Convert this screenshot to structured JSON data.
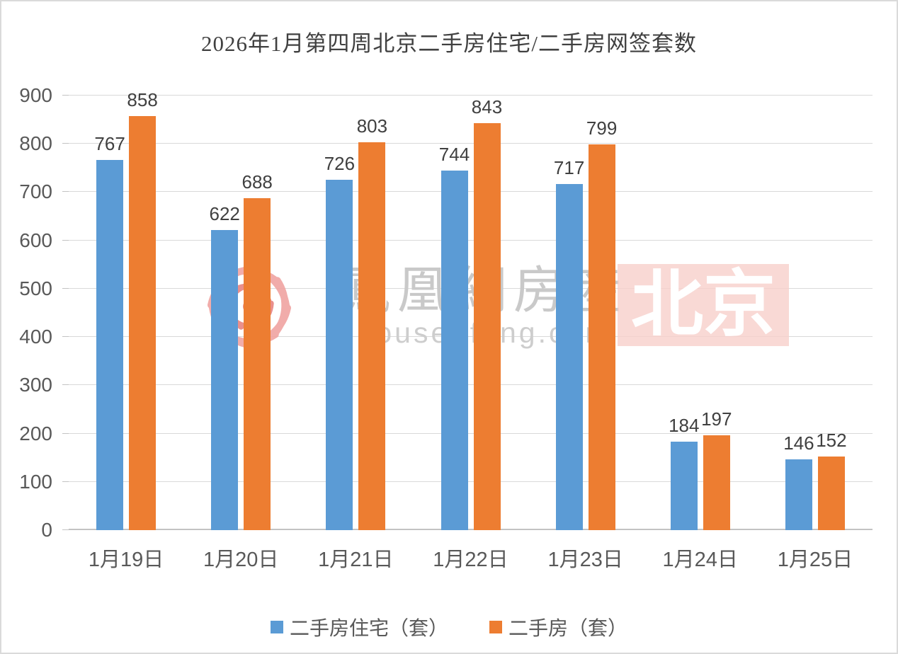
{
  "title": "2026年1月第四周北京二手房住宅/二手房网签套数",
  "watermark": {
    "brand_text": "鳳凰網房産",
    "site_url": "house.ifeng.com",
    "city_badge": "北京"
  },
  "colors": {
    "series1": "#5B9BD5",
    "series2": "#ED7D31",
    "gridline": "#D9D9D9",
    "axis_line": "#C3C3C3",
    "axis_text": "#595959",
    "value_label": "#404040",
    "title_text": "#404040",
    "watermark_text": "#C9C9C9",
    "badge_bg": "#F8CFCB",
    "badge_text": "#FFFFFF",
    "logo_pink": "#F0A4A1",
    "logo_red": "#EA8F8B"
  },
  "chart_data": {
    "type": "bar",
    "title": "2026年1月第四周北京二手房住宅/二手房网签套数",
    "categories": [
      "1月19日",
      "1月20日",
      "1月21日",
      "1月22日",
      "1月23日",
      "1月24日",
      "1月25日"
    ],
    "series": [
      {
        "name": "二手房住宅（套）",
        "color": "#5B9BD5",
        "values": [
          767,
          622,
          726,
          744,
          717,
          184,
          146
        ]
      },
      {
        "name": "二手房（套）",
        "color": "#ED7D31",
        "values": [
          858,
          688,
          803,
          843,
          799,
          197,
          152
        ]
      }
    ],
    "ylim": [
      0,
      900
    ],
    "ytick_step": 100,
    "grid": true,
    "legend_position": "bottom",
    "xlabel": "",
    "ylabel": ""
  }
}
